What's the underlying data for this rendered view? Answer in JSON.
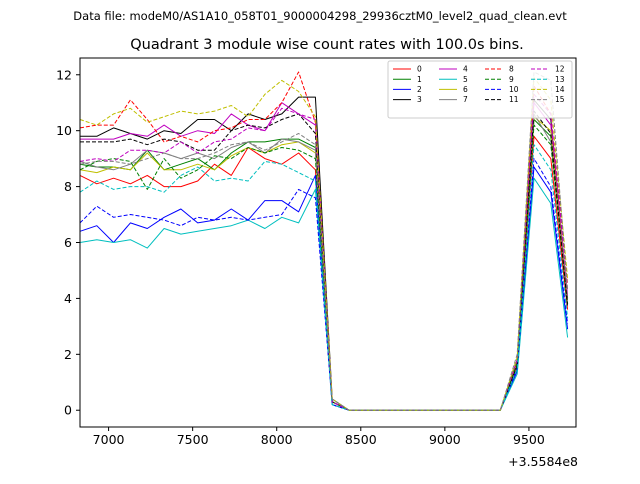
{
  "chart_data": {
    "type": "line",
    "suptitle": "Data file: modeM0/AS1A10_058T01_9000004298_29936cztM0_level2_quad_clean.evt",
    "title": "Quadrant 3 module wise count rates with 100.0s bins.",
    "xlabel": "",
    "ylabel": "",
    "x_offset_label": "+3.5584e8",
    "xlim": [
      6830,
      9780
    ],
    "ylim": [
      -0.6,
      12.6
    ],
    "xticks": [
      7000,
      7500,
      8000,
      8500,
      9000,
      9500
    ],
    "yticks": [
      0,
      2,
      4,
      6,
      8,
      10,
      12
    ],
    "grid": false,
    "legend": {
      "placement": "top-right",
      "columns": 4
    },
    "x": [
      6830,
      6930,
      7030,
      7130,
      7230,
      7330,
      7430,
      7530,
      7630,
      7730,
      7830,
      7930,
      8030,
      8130,
      8230,
      8330,
      8430,
      8530,
      8630,
      8730,
      8830,
      8930,
      9030,
      9130,
      9230,
      9330,
      9430,
      9530,
      9630,
      9730
    ],
    "series": [
      {
        "name": "0",
        "color": "#ff0000",
        "dash": "solid",
        "values": [
          8.4,
          8.1,
          8.3,
          8.1,
          8.4,
          8.0,
          8.0,
          8.2,
          8.8,
          8.4,
          9.4,
          9.0,
          8.8,
          9.2,
          8.6,
          0.3,
          0.0,
          0.0,
          0.0,
          0.0,
          0.0,
          0.0,
          0.0,
          0.0,
          0.0,
          0.0,
          1.6,
          9.8,
          9.0,
          3.6
        ]
      },
      {
        "name": "1",
        "color": "#008000",
        "dash": "solid",
        "values": [
          8.8,
          8.7,
          8.7,
          8.6,
          9.3,
          8.6,
          8.8,
          9.0,
          8.6,
          9.2,
          9.6,
          9.6,
          9.7,
          9.7,
          9.4,
          0.3,
          0.0,
          0.0,
          0.0,
          0.0,
          0.0,
          0.0,
          0.0,
          0.0,
          0.0,
          0.0,
          1.7,
          10.4,
          9.8,
          3.8
        ]
      },
      {
        "name": "2",
        "color": "#0000ff",
        "dash": "solid",
        "values": [
          6.4,
          6.6,
          6.0,
          6.7,
          6.5,
          6.9,
          7.2,
          6.7,
          6.8,
          7.2,
          6.8,
          7.5,
          7.5,
          7.1,
          8.4,
          0.2,
          0.0,
          0.0,
          0.0,
          0.0,
          0.0,
          0.0,
          0.0,
          0.0,
          0.0,
          0.0,
          1.4,
          8.7,
          7.8,
          2.9
        ]
      },
      {
        "name": "3",
        "color": "#000000",
        "dash": "solid",
        "values": [
          9.8,
          9.8,
          10.1,
          9.9,
          9.7,
          10.0,
          9.9,
          10.4,
          10.4,
          10.0,
          10.6,
          10.4,
          10.6,
          11.2,
          11.2,
          0.4,
          0.0,
          0.0,
          0.0,
          0.0,
          0.0,
          0.0,
          0.0,
          0.0,
          0.0,
          0.0,
          1.8,
          11.1,
          10.4,
          4.0
        ]
      },
      {
        "name": "4",
        "color": "#bf00bf",
        "dash": "solid",
        "values": [
          9.7,
          9.7,
          9.7,
          9.9,
          9.8,
          10.2,
          9.8,
          10.0,
          9.9,
          10.6,
          10.2,
          10.0,
          11.0,
          10.6,
          10.2,
          0.3,
          0.0,
          0.0,
          0.0,
          0.0,
          0.0,
          0.0,
          0.0,
          0.0,
          0.0,
          0.0,
          1.8,
          11.0,
          10.2,
          4.1
        ]
      },
      {
        "name": "5",
        "color": "#00bfbf",
        "dash": "solid",
        "values": [
          6.0,
          6.1,
          6.0,
          6.1,
          5.8,
          6.5,
          6.3,
          6.4,
          6.5,
          6.6,
          6.8,
          6.5,
          6.9,
          6.7,
          7.9,
          0.2,
          0.0,
          0.0,
          0.0,
          0.0,
          0.0,
          0.0,
          0.0,
          0.0,
          0.0,
          0.0,
          1.3,
          8.3,
          7.4,
          2.6
        ]
      },
      {
        "name": "6",
        "color": "#bfbf00",
        "dash": "solid",
        "values": [
          8.6,
          8.5,
          8.7,
          8.6,
          9.2,
          8.6,
          8.6,
          8.8,
          8.6,
          9.1,
          9.4,
          9.2,
          9.5,
          9.6,
          9.2,
          0.3,
          0.0,
          0.0,
          0.0,
          0.0,
          0.0,
          0.0,
          0.0,
          0.0,
          0.0,
          0.0,
          1.7,
          10.5,
          10.0,
          3.9
        ]
      },
      {
        "name": "7",
        "color": "#808080",
        "dash": "solid",
        "values": [
          8.9,
          8.7,
          8.6,
          8.8,
          9.3,
          9.2,
          9.0,
          9.2,
          9.0,
          9.4,
          9.6,
          9.2,
          9.7,
          9.6,
          9.3,
          0.3,
          0.0,
          0.0,
          0.0,
          0.0,
          0.0,
          0.0,
          0.0,
          0.0,
          0.0,
          0.0,
          1.8,
          10.6,
          9.6,
          3.9
        ]
      },
      {
        "name": "8",
        "color": "#ff0000",
        "dash": "dashed",
        "values": [
          10.1,
          10.2,
          10.2,
          11.1,
          10.4,
          9.6,
          9.8,
          9.6,
          10.0,
          10.1,
          10.4,
          10.4,
          11.0,
          12.1,
          10.3,
          0.3,
          0.0,
          0.0,
          0.0,
          0.0,
          0.0,
          0.0,
          0.0,
          0.0,
          0.0,
          0.0,
          1.7,
          11.6,
          10.6,
          4.5
        ]
      },
      {
        "name": "9",
        "color": "#008000",
        "dash": "dashed",
        "values": [
          8.6,
          8.9,
          9.0,
          8.9,
          7.9,
          9.0,
          8.3,
          8.6,
          9.1,
          9.0,
          9.4,
          9.2,
          9.4,
          9.3,
          9.0,
          0.3,
          0.0,
          0.0,
          0.0,
          0.0,
          0.0,
          0.0,
          0.0,
          0.0,
          0.0,
          0.0,
          1.7,
          10.2,
          9.5,
          3.8
        ]
      },
      {
        "name": "10",
        "color": "#0000ff",
        "dash": "dashed",
        "values": [
          6.7,
          7.3,
          6.9,
          7.0,
          6.9,
          6.8,
          6.6,
          6.9,
          6.8,
          6.9,
          6.8,
          6.9,
          7.0,
          7.9,
          7.6,
          0.2,
          0.0,
          0.0,
          0.0,
          0.0,
          0.0,
          0.0,
          0.0,
          0.0,
          0.0,
          0.0,
          1.5,
          9.0,
          8.0,
          3.1
        ]
      },
      {
        "name": "11",
        "color": "#000000",
        "dash": "dashed",
        "values": [
          9.6,
          9.6,
          9.6,
          9.7,
          9.5,
          9.7,
          9.6,
          9.3,
          9.3,
          10.0,
          10.2,
          10.1,
          10.4,
          10.6,
          9.9,
          0.3,
          0.0,
          0.0,
          0.0,
          0.0,
          0.0,
          0.0,
          0.0,
          0.0,
          0.0,
          0.0,
          1.6,
          10.7,
          9.9,
          3.7
        ]
      },
      {
        "name": "12",
        "color": "#bf00bf",
        "dash": "dashed",
        "values": [
          8.9,
          9.0,
          8.9,
          9.3,
          9.3,
          9.2,
          9.6,
          9.2,
          9.6,
          9.7,
          10.1,
          10.0,
          10.8,
          10.6,
          10.4,
          0.3,
          0.0,
          0.0,
          0.0,
          0.0,
          0.0,
          0.0,
          0.0,
          0.0,
          0.0,
          0.0,
          1.8,
          11.3,
          10.6,
          4.3
        ]
      },
      {
        "name": "13",
        "color": "#00bfbf",
        "dash": "dashed",
        "values": [
          7.8,
          8.2,
          7.9,
          8.0,
          8.0,
          7.8,
          8.4,
          8.7,
          8.2,
          8.3,
          8.2,
          8.9,
          8.8,
          8.5,
          8.2,
          0.2,
          0.0,
          0.0,
          0.0,
          0.0,
          0.0,
          0.0,
          0.0,
          0.0,
          0.0,
          0.0,
          1.5,
          9.5,
          8.6,
          3.3
        ]
      },
      {
        "name": "14",
        "color": "#bfbf00",
        "dash": "dashed",
        "values": [
          10.4,
          10.2,
          10.6,
          10.8,
          10.3,
          10.5,
          10.7,
          10.6,
          10.7,
          10.9,
          10.5,
          11.3,
          11.8,
          11.4,
          10.5,
          0.4,
          0.0,
          0.0,
          0.0,
          0.0,
          0.0,
          0.0,
          0.0,
          0.0,
          0.0,
          0.0,
          1.9,
          11.9,
          11.1,
          4.7
        ]
      },
      {
        "name": "15",
        "color": "#808080",
        "dash": "dashed",
        "values": [
          8.8,
          8.9,
          8.9,
          8.8,
          9.0,
          9.2,
          9.0,
          9.0,
          9.2,
          9.5,
          9.6,
          9.3,
          9.6,
          9.9,
          9.5,
          0.4,
          0.0,
          0.0,
          0.0,
          0.0,
          0.0,
          0.0,
          0.0,
          0.0,
          0.0,
          0.0,
          2.0,
          12.1,
          11.8,
          4.3
        ]
      }
    ]
  }
}
